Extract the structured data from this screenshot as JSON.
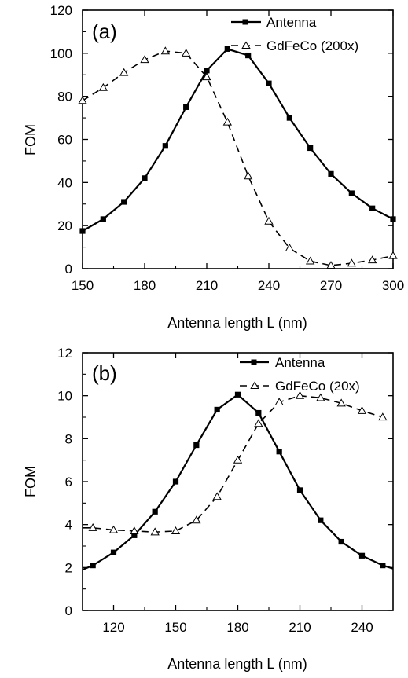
{
  "chart_data": [
    {
      "type": "line",
      "panel_label": "(a)",
      "xlabel": "Antenna length L (nm)",
      "ylabel": "FOM",
      "xlim": [
        150,
        300
      ],
      "ylim": [
        0,
        120
      ],
      "xticks": [
        "150",
        "180",
        "210",
        "240",
        "270",
        "300"
      ],
      "yticks": [
        "0",
        "20",
        "40",
        "60",
        "80",
        "100",
        "120"
      ],
      "legend_position": "top-right",
      "series": [
        {
          "name": "Antenna",
          "style": "solid",
          "marker": "filled-square",
          "color": "#000000",
          "x": [
            150,
            160,
            170,
            180,
            190,
            200,
            210,
            220,
            230,
            240,
            250,
            260,
            270,
            280,
            290,
            300
          ],
          "y": [
            17.5,
            23,
            31,
            42,
            57,
            75,
            92,
            102,
            99,
            86,
            70,
            56,
            44,
            35,
            28,
            23
          ]
        },
        {
          "name": "GdFeCo (200x)",
          "style": "dashed",
          "marker": "open-triangle",
          "color": "#000000",
          "x": [
            150,
            160,
            170,
            180,
            190,
            200,
            210,
            220,
            230,
            240,
            250,
            260,
            270,
            280,
            290,
            300
          ],
          "y": [
            78,
            84,
            91,
            97,
            101,
            100,
            89,
            68,
            43,
            22,
            9.5,
            3.5,
            1.5,
            2.5,
            4,
            6
          ]
        }
      ]
    },
    {
      "type": "line",
      "panel_label": "(b)",
      "xlabel": "Antenna length L (nm)",
      "ylabel": "FOM",
      "xlim": [
        105,
        255
      ],
      "ylim": [
        0,
        12
      ],
      "xticks": [
        "120",
        "150",
        "180",
        "210",
        "240"
      ],
      "yticks": [
        "0",
        "2",
        "4",
        "6",
        "8",
        "10",
        "12"
      ],
      "legend_position": "top-right",
      "series": [
        {
          "name": "Antenna",
          "style": "solid",
          "marker": "filled-square",
          "color": "#000000",
          "x": [
            105,
            110,
            120,
            130,
            140,
            150,
            160,
            170,
            180,
            190,
            200,
            210,
            220,
            230,
            240,
            250,
            255
          ],
          "y": [
            1.9,
            2.1,
            2.7,
            3.5,
            4.6,
            6.0,
            7.7,
            9.35,
            10.05,
            9.2,
            7.4,
            5.6,
            4.2,
            3.2,
            2.55,
            2.1,
            1.95
          ],
          "markers_at": [
            110,
            120,
            130,
            140,
            150,
            160,
            170,
            180,
            190,
            200,
            210,
            220,
            230,
            240,
            250
          ]
        },
        {
          "name": "GdFeCo (20x)",
          "style": "dashed",
          "marker": "open-triangle",
          "color": "#000000",
          "x": [
            105,
            110,
            120,
            130,
            140,
            150,
            160,
            170,
            180,
            190,
            200,
            210,
            220,
            230,
            240,
            250
          ],
          "y": [
            3.85,
            3.85,
            3.75,
            3.7,
            3.65,
            3.7,
            4.2,
            5.3,
            7.0,
            8.7,
            9.7,
            10.0,
            9.9,
            9.65,
            9.3,
            9.0
          ],
          "markers_at": [
            110,
            120,
            130,
            140,
            150,
            160,
            170,
            180,
            190,
            200,
            210,
            220,
            230,
            240,
            250
          ]
        }
      ]
    }
  ]
}
